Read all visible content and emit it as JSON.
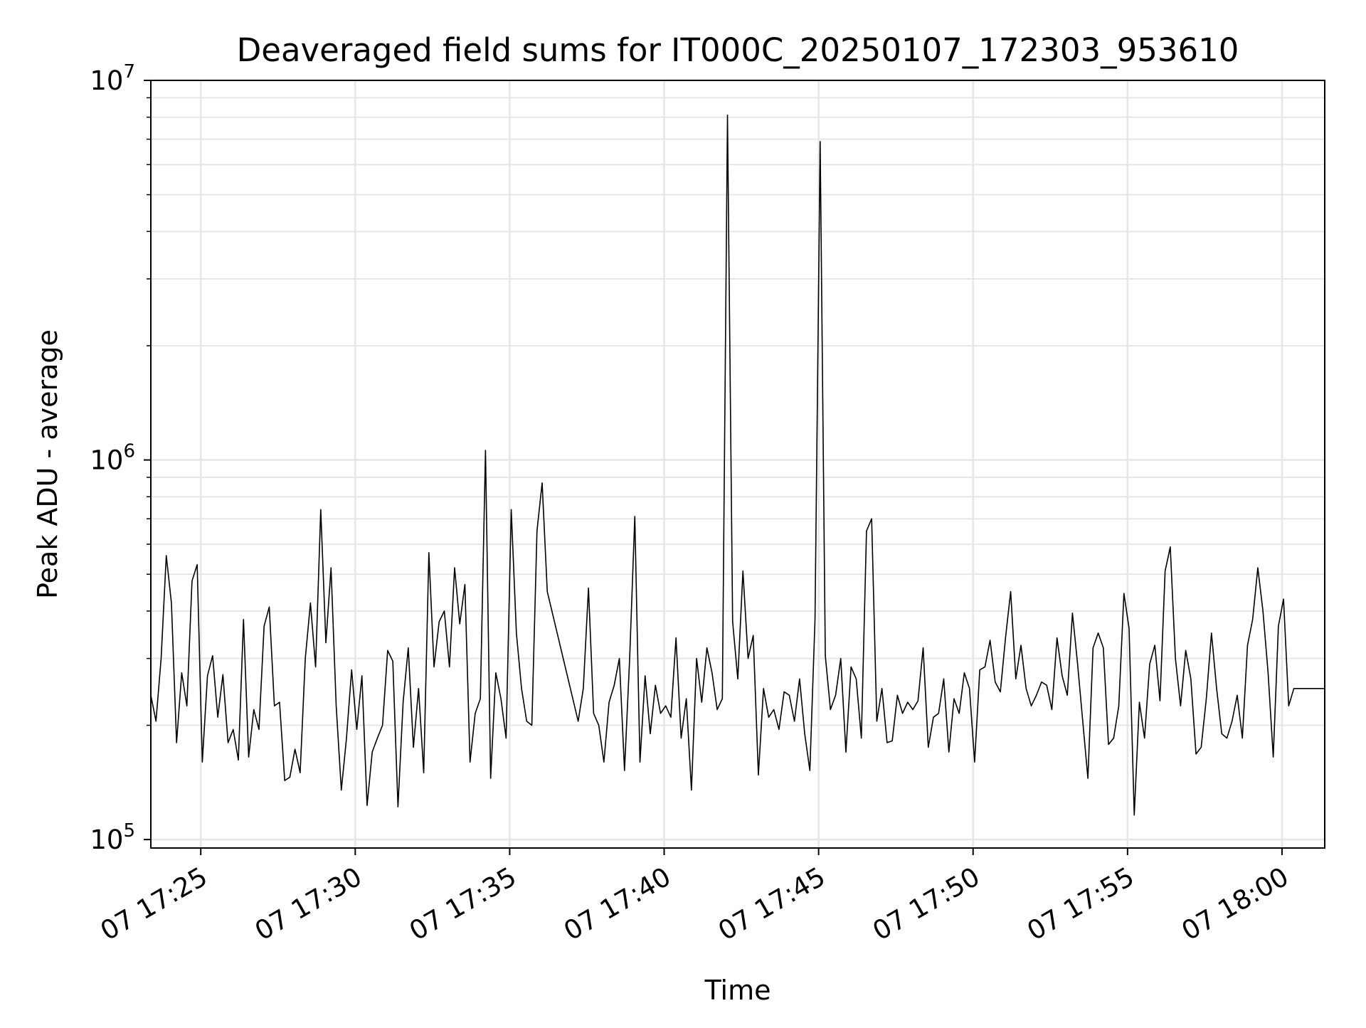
{
  "chart_data": {
    "type": "line",
    "title": "Deaveraged field sums for IT000C_20250107_172303_953610",
    "xlabel": "Time",
    "ylabel": "Peak ADU - average",
    "y_scale": "log",
    "ylim": [
      95000,
      10000000
    ],
    "xlim": [
      "2025-01-07 17:23:23",
      "2025-01-07 18:01:23"
    ],
    "x_ticks": [
      {
        "label": "07 17:25",
        "value": "2025-01-07 17:25:00"
      },
      {
        "label": "07 17:30",
        "value": "2025-01-07 17:30:00"
      },
      {
        "label": "07 17:35",
        "value": "2025-01-07 17:35:00"
      },
      {
        "label": "07 17:40",
        "value": "2025-01-07 17:40:00"
      },
      {
        "label": "07 17:45",
        "value": "2025-01-07 17:45:00"
      },
      {
        "label": "07 17:50",
        "value": "2025-01-07 17:50:00"
      },
      {
        "label": "07 17:55",
        "value": "2025-01-07 17:55:00"
      },
      {
        "label": "07 18:00",
        "value": "2025-01-07 18:00:00"
      }
    ],
    "y_ticks": [
      {
        "base": "10",
        "exp": "5",
        "value": 100000
      },
      {
        "base": "10",
        "exp": "6",
        "value": 1000000
      },
      {
        "base": "10",
        "exp": "7",
        "value": 10000000
      }
    ],
    "grid": true,
    "line_color": "#000000",
    "grid_color": "#e6e6e6",
    "series": [
      {
        "x": [
          "2025-01-07 17:23:23",
          "2025-01-07 17:23:33",
          "2025-01-07 17:23:43",
          "2025-01-07 17:23:53",
          "2025-01-07 17:24:03",
          "2025-01-07 17:24:13",
          "2025-01-07 17:24:23",
          "2025-01-07 17:24:33",
          "2025-01-07 17:24:43",
          "2025-01-07 17:24:53",
          "2025-01-07 17:25:03",
          "2025-01-07 17:25:13",
          "2025-01-07 17:25:23",
          "2025-01-07 17:25:33",
          "2025-01-07 17:25:43",
          "2025-01-07 17:25:53",
          "2025-01-07 17:26:03",
          "2025-01-07 17:26:13",
          "2025-01-07 17:26:23",
          "2025-01-07 17:26:33",
          "2025-01-07 17:26:43",
          "2025-01-07 17:26:53",
          "2025-01-07 17:27:03",
          "2025-01-07 17:27:13",
          "2025-01-07 17:27:23",
          "2025-01-07 17:27:33",
          "2025-01-07 17:27:43",
          "2025-01-07 17:27:53",
          "2025-01-07 17:28:03",
          "2025-01-07 17:28:13",
          "2025-01-07 17:28:23",
          "2025-01-07 17:28:33",
          "2025-01-07 17:28:43",
          "2025-01-07 17:28:53",
          "2025-01-07 17:29:03",
          "2025-01-07 17:29:13",
          "2025-01-07 17:29:23",
          "2025-01-07 17:29:33",
          "2025-01-07 17:29:43",
          "2025-01-07 17:29:53",
          "2025-01-07 17:30:03",
          "2025-01-07 17:30:13",
          "2025-01-07 17:30:23",
          "2025-01-07 17:30:33",
          "2025-01-07 17:30:43",
          "2025-01-07 17:30:53",
          "2025-01-07 17:31:03",
          "2025-01-07 17:31:13",
          "2025-01-07 17:31:23",
          "2025-01-07 17:31:33",
          "2025-01-07 17:31:43",
          "2025-01-07 17:31:53",
          "2025-01-07 17:32:03",
          "2025-01-07 17:32:13",
          "2025-01-07 17:32:23",
          "2025-01-07 17:32:33",
          "2025-01-07 17:32:43",
          "2025-01-07 17:32:53",
          "2025-01-07 17:33:03",
          "2025-01-07 17:33:13",
          "2025-01-07 17:33:23",
          "2025-01-07 17:33:33",
          "2025-01-07 17:33:43",
          "2025-01-07 17:33:53",
          "2025-01-07 17:34:03",
          "2025-01-07 17:34:13",
          "2025-01-07 17:34:23",
          "2025-01-07 17:34:33",
          "2025-01-07 17:34:43",
          "2025-01-07 17:34:53",
          "2025-01-07 17:35:03",
          "2025-01-07 17:35:13",
          "2025-01-07 17:35:23",
          "2025-01-07 17:35:33",
          "2025-01-07 17:35:43",
          "2025-01-07 17:35:53",
          "2025-01-07 17:36:03",
          "2025-01-07 17:36:13",
          "2025-01-07 17:37:13",
          "2025-01-07 17:37:23",
          "2025-01-07 17:37:33",
          "2025-01-07 17:37:43",
          "2025-01-07 17:37:53",
          "2025-01-07 17:38:03",
          "2025-01-07 17:38:13",
          "2025-01-07 17:38:23",
          "2025-01-07 17:38:33",
          "2025-01-07 17:38:43",
          "2025-01-07 17:38:53",
          "2025-01-07 17:39:03",
          "2025-01-07 17:39:13",
          "2025-01-07 17:39:23",
          "2025-01-07 17:39:33",
          "2025-01-07 17:39:43",
          "2025-01-07 17:39:53",
          "2025-01-07 17:40:03",
          "2025-01-07 17:40:13",
          "2025-01-07 17:40:23",
          "2025-01-07 17:40:33",
          "2025-01-07 17:40:43",
          "2025-01-07 17:40:53",
          "2025-01-07 17:41:03",
          "2025-01-07 17:41:13",
          "2025-01-07 17:41:23",
          "2025-01-07 17:41:33",
          "2025-01-07 17:41:43",
          "2025-01-07 17:41:53",
          "2025-01-07 17:42:03",
          "2025-01-07 17:42:13",
          "2025-01-07 17:42:23",
          "2025-01-07 17:42:33",
          "2025-01-07 17:42:43",
          "2025-01-07 17:42:53",
          "2025-01-07 17:43:03",
          "2025-01-07 17:43:13",
          "2025-01-07 17:43:23",
          "2025-01-07 17:43:33",
          "2025-01-07 17:43:43",
          "2025-01-07 17:43:53",
          "2025-01-07 17:44:03",
          "2025-01-07 17:44:13",
          "2025-01-07 17:44:23",
          "2025-01-07 17:44:33",
          "2025-01-07 17:44:43",
          "2025-01-07 17:44:53",
          "2025-01-07 17:45:03",
          "2025-01-07 17:45:13",
          "2025-01-07 17:45:23",
          "2025-01-07 17:45:33",
          "2025-01-07 17:45:43",
          "2025-01-07 17:45:53",
          "2025-01-07 17:46:03",
          "2025-01-07 17:46:13",
          "2025-01-07 17:46:23",
          "2025-01-07 17:46:33",
          "2025-01-07 17:46:43",
          "2025-01-07 17:46:53",
          "2025-01-07 17:47:03",
          "2025-01-07 17:47:13",
          "2025-01-07 17:47:23",
          "2025-01-07 17:47:33",
          "2025-01-07 17:47:43",
          "2025-01-07 17:47:53",
          "2025-01-07 17:48:03",
          "2025-01-07 17:48:13",
          "2025-01-07 17:48:23",
          "2025-01-07 17:48:33",
          "2025-01-07 17:48:43",
          "2025-01-07 17:48:53",
          "2025-01-07 17:49:03",
          "2025-01-07 17:49:13",
          "2025-01-07 17:49:23",
          "2025-01-07 17:49:33",
          "2025-01-07 17:49:43",
          "2025-01-07 17:49:53",
          "2025-01-07 17:50:03",
          "2025-01-07 17:50:13",
          "2025-01-07 17:50:23",
          "2025-01-07 17:50:33",
          "2025-01-07 17:50:43",
          "2025-01-07 17:50:53",
          "2025-01-07 17:51:03",
          "2025-01-07 17:51:13",
          "2025-01-07 17:51:23",
          "2025-01-07 17:51:33",
          "2025-01-07 17:51:43",
          "2025-01-07 17:51:53",
          "2025-01-07 17:52:03",
          "2025-01-07 17:52:13",
          "2025-01-07 17:52:23",
          "2025-01-07 17:52:33",
          "2025-01-07 17:52:43",
          "2025-01-07 17:52:53",
          "2025-01-07 17:53:03",
          "2025-01-07 17:53:13",
          "2025-01-07 17:53:23",
          "2025-01-07 17:53:33",
          "2025-01-07 17:53:43",
          "2025-01-07 17:53:53",
          "2025-01-07 17:54:03",
          "2025-01-07 17:54:13",
          "2025-01-07 17:54:23",
          "2025-01-07 17:54:33",
          "2025-01-07 17:54:43",
          "2025-01-07 17:54:53",
          "2025-01-07 17:55:03",
          "2025-01-07 17:55:13",
          "2025-01-07 17:55:23",
          "2025-01-07 17:55:33",
          "2025-01-07 17:55:43",
          "2025-01-07 17:55:53",
          "2025-01-07 17:56:03",
          "2025-01-07 17:56:13",
          "2025-01-07 17:56:23",
          "2025-01-07 17:56:33",
          "2025-01-07 17:56:43",
          "2025-01-07 17:56:53",
          "2025-01-07 17:57:03",
          "2025-01-07 17:57:13",
          "2025-01-07 17:57:23",
          "2025-01-07 17:57:33",
          "2025-01-07 17:57:43",
          "2025-01-07 17:57:53",
          "2025-01-07 17:58:03",
          "2025-01-07 17:58:13",
          "2025-01-07 17:58:23",
          "2025-01-07 17:58:33",
          "2025-01-07 17:58:43",
          "2025-01-07 17:58:53",
          "2025-01-07 17:59:03",
          "2025-01-07 17:59:13",
          "2025-01-07 17:59:23",
          "2025-01-07 17:59:33",
          "2025-01-07 17:59:43",
          "2025-01-07 17:59:53",
          "2025-01-07 18:00:03",
          "2025-01-07 18:00:13",
          "2025-01-07 18:00:23",
          "2025-01-07 18:00:33",
          "2025-01-07 18:00:43",
          "2025-01-07 18:00:53",
          "2025-01-07 18:01:03",
          "2025-01-07 18:01:13",
          "2025-01-07 18:01:23"
        ],
        "values": [
          240000,
          205000,
          300000,
          560000,
          420000,
          180000,
          275000,
          225000,
          480000,
          530000,
          160000,
          270000,
          305000,
          210000,
          272000,
          180000,
          195000,
          162000,
          380000,
          165000,
          220000,
          195000,
          365000,
          410000,
          225000,
          230000,
          143000,
          146000,
          173000,
          150000,
          300000,
          420000,
          285000,
          740000,
          330000,
          520000,
          225000,
          135000,
          185000,
          280000,
          195000,
          270000,
          123000,
          170000,
          185000,
          200000,
          315000,
          295000,
          122000,
          230000,
          320000,
          175000,
          250000,
          150000,
          570000,
          285000,
          375000,
          400000,
          285000,
          520000,
          370000,
          470000,
          160000,
          215000,
          235000,
          1060000,
          145000,
          275000,
          235000,
          185000,
          740000,
          350000,
          250000,
          205000,
          200000,
          650000,
          870000,
          450000,
          205000,
          250000,
          460000,
          215000,
          200000,
          160000,
          230000,
          255000,
          300000,
          152000,
          300000,
          710000,
          160000,
          270000,
          190000,
          255000,
          215000,
          225000,
          210000,
          340000,
          185000,
          235000,
          135000,
          300000,
          230000,
          320000,
          275000,
          220000,
          235000,
          8100000,
          375000,
          265000,
          510000,
          300000,
          345000,
          148000,
          250000,
          210000,
          220000,
          195000,
          245000,
          240000,
          205000,
          265000,
          190000,
          152000,
          380000,
          6900000,
          305000,
          220000,
          240000,
          300000,
          170000,
          285000,
          265000,
          185000,
          650000,
          700000,
          205000,
          250000,
          180000,
          182000,
          240000,
          215000,
          230000,
          220000,
          232000,
          320000,
          175000,
          210000,
          215000,
          265000,
          170000,
          235000,
          215000,
          275000,
          250000,
          160000,
          280000,
          285000,
          335000,
          260000,
          245000,
          340000,
          450000,
          265000,
          325000,
          250000,
          225000,
          240000,
          260000,
          255000,
          220000,
          340000,
          270000,
          240000,
          395000,
          290000,
          205000,
          145000,
          320000,
          350000,
          320000,
          178000,
          185000,
          225000,
          445000,
          360000,
          116000,
          230000,
          185000,
          290000,
          325000,
          232000,
          510000,
          590000,
          300000,
          225000,
          315000,
          265000,
          168000,
          175000,
          235000,
          350000,
          250000,
          190000,
          185000,
          205000,
          240000,
          185000,
          325000,
          380000,
          520000,
          400000,
          275000,
          165000,
          365000,
          430000,
          225000,
          250000,
          250000,
          250000,
          250000,
          250000,
          250000,
          250000
        ]
      }
    ]
  }
}
